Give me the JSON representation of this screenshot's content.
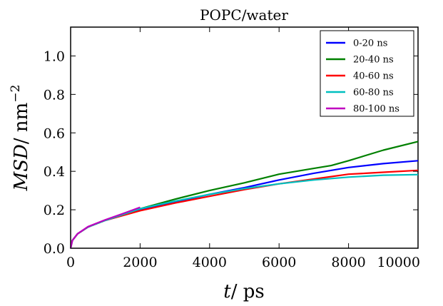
{
  "chart_data": {
    "type": "line",
    "title": "POPC/water",
    "xlabel": {
      "italic": "t",
      "rest": "/ ps"
    },
    "ylabel": {
      "italic": "MSD",
      "rest": "/ nm",
      "sup": "−2"
    },
    "xlim": [
      0,
      10000
    ],
    "ylim": [
      0.0,
      1.15
    ],
    "xticks": [
      0,
      2000,
      4000,
      6000,
      8000,
      10000
    ],
    "xtick_labels": [
      "0",
      "2000",
      "4000",
      "6000",
      "8000",
      "10000"
    ],
    "yticks": [
      0.0,
      0.2,
      0.4,
      0.6,
      0.8,
      1.0
    ],
    "ytick_labels": [
      "0.0",
      "0.2",
      "0.4",
      "0.6",
      "0.8",
      "1.0"
    ],
    "grid": false,
    "legend_position": "top-right",
    "series": [
      {
        "name": "0-20 ns",
        "color": "#0000ff",
        "x": [
          0,
          50,
          200,
          500,
          1000,
          2000,
          3000,
          4000,
          5000,
          6000,
          7000,
          8000,
          9000,
          10000
        ],
        "y": [
          0,
          0.04,
          0.075,
          0.11,
          0.145,
          0.197,
          0.24,
          0.28,
          0.315,
          0.355,
          0.39,
          0.42,
          0.44,
          0.455
        ]
      },
      {
        "name": "20-40 ns",
        "color": "#008000",
        "x": [
          0,
          50,
          200,
          500,
          1000,
          2000,
          3000,
          4000,
          5000,
          6000,
          7000,
          7500,
          8000,
          9000,
          10000
        ],
        "y": [
          0,
          0.04,
          0.075,
          0.11,
          0.145,
          0.205,
          0.255,
          0.3,
          0.34,
          0.385,
          0.415,
          0.43,
          0.455,
          0.51,
          0.555
        ]
      },
      {
        "name": "40-60 ns",
        "color": "#ff0000",
        "x": [
          0,
          50,
          200,
          500,
          1000,
          2000,
          3000,
          4000,
          5000,
          6000,
          7000,
          8000,
          8500,
          9000,
          10000
        ],
        "y": [
          0,
          0.04,
          0.075,
          0.11,
          0.145,
          0.195,
          0.235,
          0.27,
          0.305,
          0.335,
          0.36,
          0.385,
          0.39,
          0.395,
          0.405
        ]
      },
      {
        "name": "60-80 ns",
        "color": "#00bfbf",
        "x": [
          0,
          50,
          200,
          500,
          1000,
          2000,
          3000,
          4000,
          5000,
          6000,
          7000,
          8000,
          9000,
          10000
        ],
        "y": [
          0,
          0.04,
          0.075,
          0.11,
          0.145,
          0.205,
          0.245,
          0.28,
          0.31,
          0.335,
          0.355,
          0.37,
          0.38,
          0.383
        ]
      },
      {
        "name": "80-100 ns",
        "color": "#bf00bf",
        "x": [
          0,
          50,
          200,
          500,
          1000,
          1500,
          2000
        ],
        "y": [
          0,
          0.04,
          0.075,
          0.112,
          0.148,
          0.18,
          0.213
        ]
      }
    ]
  }
}
